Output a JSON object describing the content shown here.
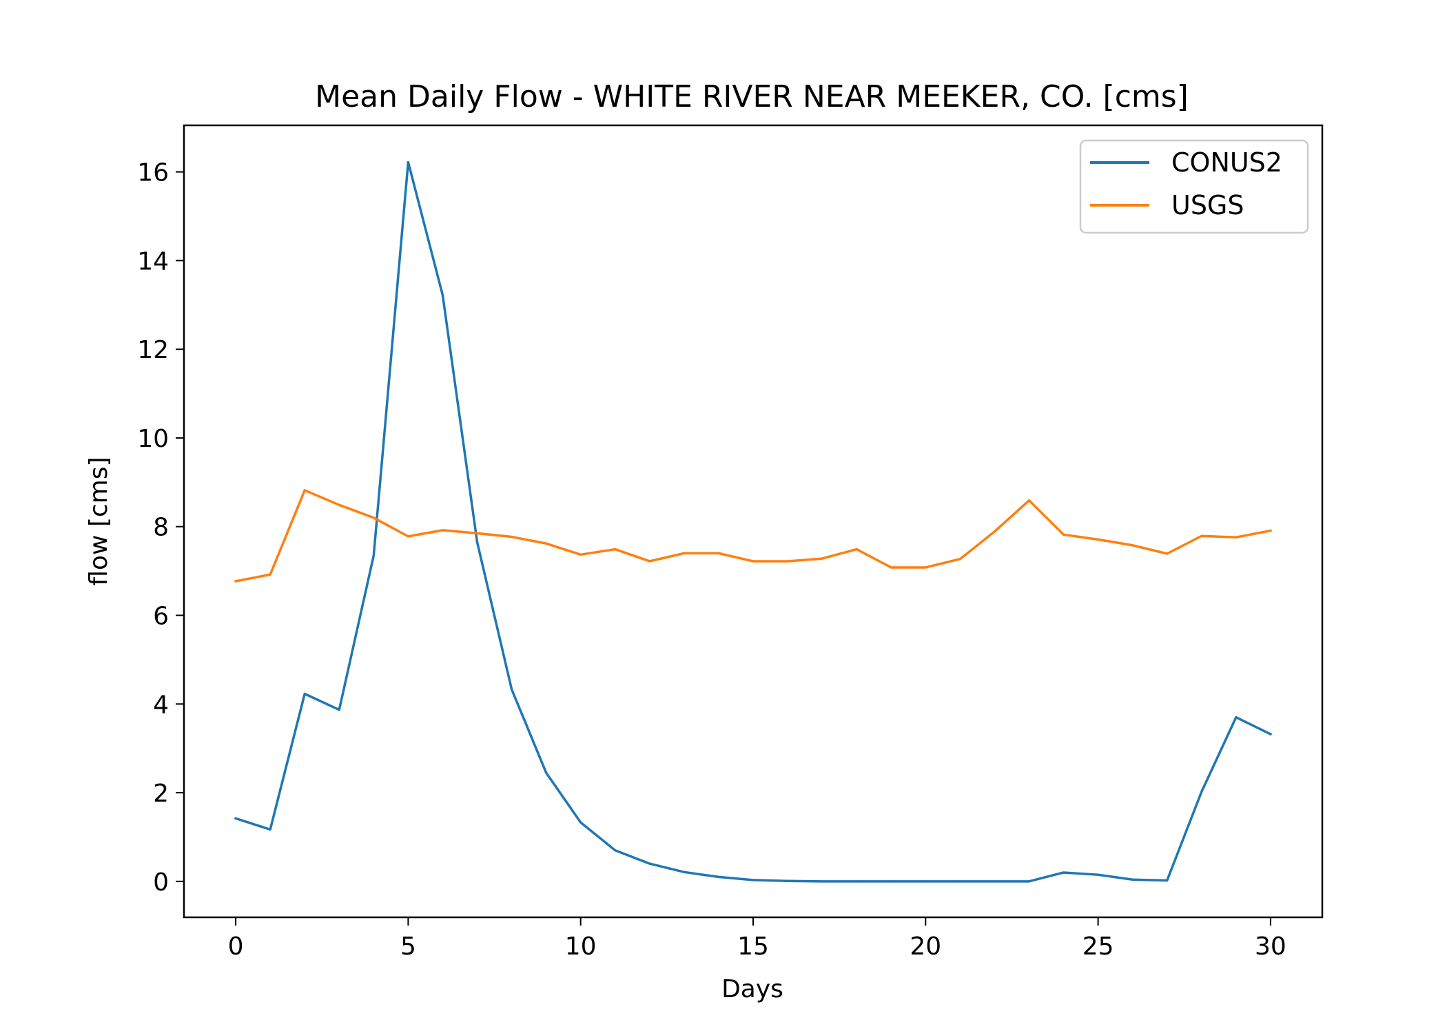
{
  "chart_data": {
    "type": "line",
    "title": "Mean Daily Flow - WHITE RIVER NEAR MEEKER, CO. [cms]",
    "xlabel": "Days",
    "ylabel": "flow [cms]",
    "xlim": [
      -1.5,
      31.5
    ],
    "ylim": [
      -0.81,
      17.05
    ],
    "xticks": [
      0,
      5,
      10,
      15,
      20,
      25,
      30
    ],
    "yticks": [
      0,
      2,
      4,
      6,
      8,
      10,
      12,
      14,
      16
    ],
    "grid": false,
    "legend_position": "top-right",
    "x": [
      0,
      1,
      2,
      3,
      4,
      5,
      6,
      7,
      8,
      9,
      10,
      11,
      12,
      13,
      14,
      15,
      16,
      17,
      18,
      19,
      20,
      21,
      22,
      23,
      24,
      25,
      26,
      27,
      28,
      29,
      30
    ],
    "series": [
      {
        "name": "CONUS2",
        "color": "#1f77b4",
        "values": [
          1.42,
          1.17,
          4.23,
          3.87,
          7.35,
          16.22,
          13.22,
          7.65,
          4.33,
          2.45,
          1.33,
          0.7,
          0.4,
          0.21,
          0.1,
          0.03,
          0.01,
          0.0,
          0.0,
          0.0,
          0.0,
          0.0,
          0.0,
          0.0,
          0.2,
          0.15,
          0.04,
          0.02,
          2.02,
          3.7,
          3.32
        ]
      },
      {
        "name": "USGS",
        "color": "#ff7f0e",
        "values": [
          6.77,
          6.92,
          8.82,
          8.49,
          8.2,
          7.78,
          7.92,
          7.85,
          7.77,
          7.62,
          7.37,
          7.49,
          7.22,
          7.4,
          7.4,
          7.22,
          7.22,
          7.28,
          7.49,
          7.08,
          7.08,
          7.27,
          7.89,
          8.59,
          7.82,
          7.71,
          7.58,
          7.39,
          7.79,
          7.76,
          7.91
        ]
      }
    ]
  }
}
